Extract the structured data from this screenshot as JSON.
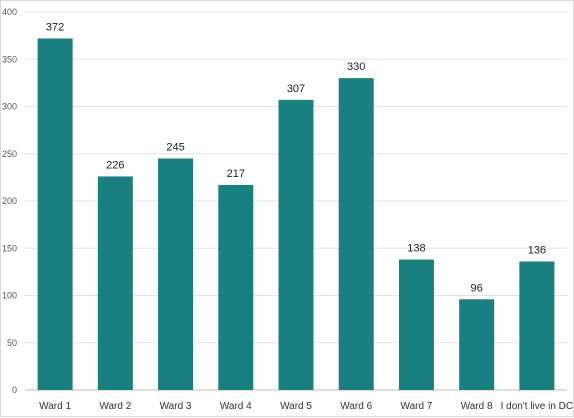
{
  "chart_data": {
    "type": "bar",
    "title": "",
    "xlabel": "",
    "ylabel": "",
    "categories": [
      "Ward 1",
      "Ward 2",
      "Ward 3",
      "Ward 4",
      "Ward 5",
      "Ward 6",
      "Ward 7",
      "Ward 8",
      "I don't live in DC"
    ],
    "values": [
      372,
      226,
      245,
      217,
      307,
      330,
      138,
      96,
      136
    ],
    "ylim": [
      0,
      400
    ],
    "yticks": [
      0,
      50,
      100,
      150,
      200,
      250,
      300,
      350,
      400
    ],
    "grid": true,
    "legend": "none",
    "bar_color": "#1a7f80",
    "data_labels": true
  }
}
